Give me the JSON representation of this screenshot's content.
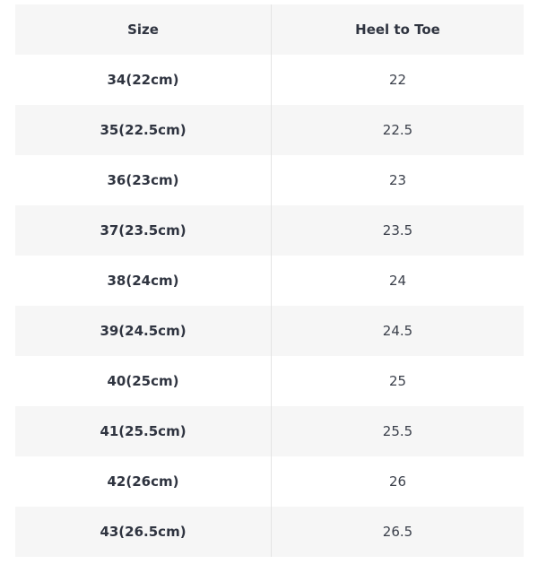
{
  "table": {
    "header": [
      "Size",
      "Heel to Toe"
    ],
    "rows": [
      [
        "34(22cm)",
        "22"
      ],
      [
        "35(22.5cm)",
        "22.5"
      ],
      [
        "36(23cm)",
        "23"
      ],
      [
        "37(23.5cm)",
        "23.5"
      ],
      [
        "38(24cm)",
        "24"
      ],
      [
        "39(24.5cm)",
        "24.5"
      ],
      [
        "40(25cm)",
        "25"
      ],
      [
        "41(25.5cm)",
        "25.5"
      ],
      [
        "42(26cm)",
        "26"
      ],
      [
        "43(26.5cm)",
        "26.5"
      ]
    ]
  }
}
